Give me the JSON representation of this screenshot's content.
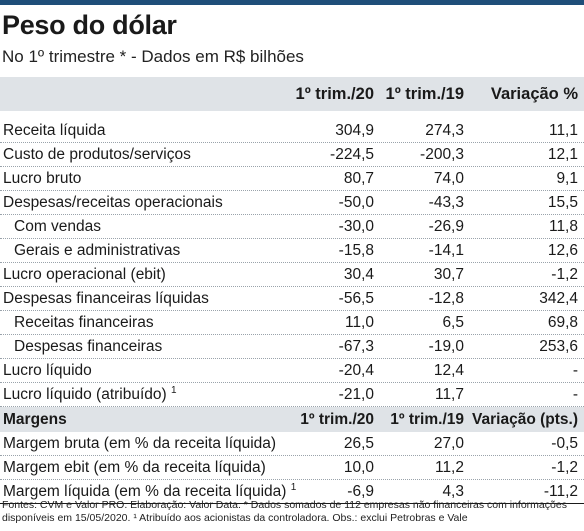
{
  "title": "Peso do dólar",
  "subtitle": "No 1º trimestre * - Dados em R$ bilhões",
  "header": {
    "col1": "1º trim./20",
    "col2": "1º trim./19",
    "col3": "Variação %"
  },
  "rows": [
    {
      "label": "Receita líquida",
      "v20": "304,9",
      "v19": "274,3",
      "var": "11,1"
    },
    {
      "label": "Custo de produtos/serviços",
      "v20": "-224,5",
      "v19": "-200,3",
      "var": "12,1"
    },
    {
      "label": "Lucro bruto",
      "v20": "80,7",
      "v19": "74,0",
      "var": "9,1"
    },
    {
      "label": "Despesas/receitas operacionais",
      "v20": "-50,0",
      "v19": "-43,3",
      "var": "15,5"
    },
    {
      "label": "Com vendas",
      "v20": "-30,0",
      "v19": "-26,9",
      "var": "11,8"
    },
    {
      "label": "Gerais e administrativas",
      "v20": "-15,8",
      "v19": "-14,1",
      "var": "12,6"
    },
    {
      "label": "Lucro operacional (ebit)",
      "v20": "30,4",
      "v19": "30,7",
      "var": "-1,2"
    },
    {
      "label": "Despesas financeiras líquidas",
      "v20": "-56,5",
      "v19": "-12,8",
      "var": "342,4"
    },
    {
      "label": "Receitas financeiras",
      "v20": "11,0",
      "v19": "6,5",
      "var": "69,8"
    },
    {
      "label": "Despesas financeiras",
      "v20": "-67,3",
      "v19": "-19,0",
      "var": "253,6"
    },
    {
      "label": "Lucro líquido",
      "v20": "-20,4",
      "v19": "12,4",
      "var": "-"
    },
    {
      "label": "Lucro líquido (atribuído)",
      "sup": "1",
      "v20": "-21,0",
      "v19": "11,7",
      "var": "-"
    }
  ],
  "margins_header": {
    "label": "Margens",
    "col1": "1º trim./20",
    "col2": "1º trim./19",
    "col3": "Variação (pts.)"
  },
  "margins": [
    {
      "label": "Margem bruta (em % da receita líquida)",
      "v20": "26,5",
      "v19": "27,0",
      "var": "-0,5"
    },
    {
      "label": "Margem ebit (em % da receita líquida)",
      "v20": "10,0",
      "v19": "11,2",
      "var": "-1,2"
    },
    {
      "label": "Margem líquida (em % da receita líquida)",
      "sup": "1",
      "v20": "-6,9",
      "v19": "4,3",
      "var": "-11,2"
    }
  ],
  "footnote": "Fontes: CVM e Valor PRO. Elaboração: Valor Data. * Dados somados de 112 empresas não financeiras com informações disponíveis em 15/05/2020. ¹ Atribuído aos acionistas da controladora. Obs.: exclui Petrobras e Vale"
}
